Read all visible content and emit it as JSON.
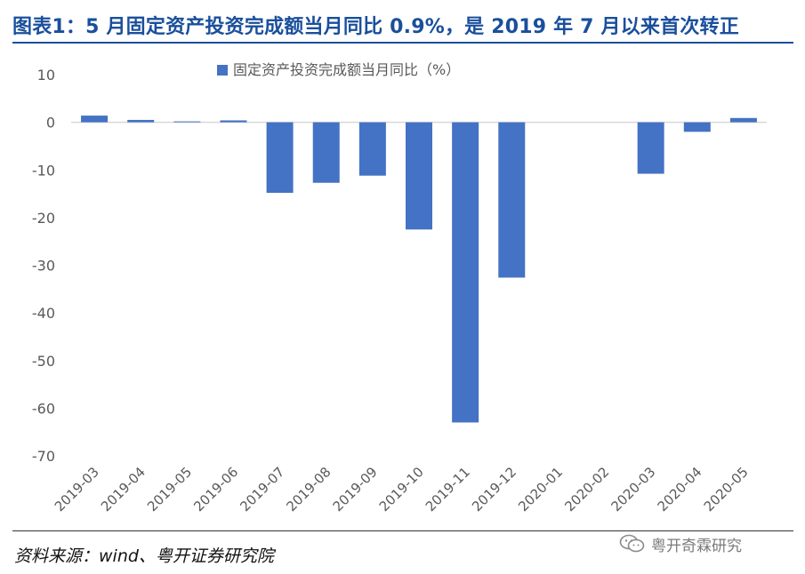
{
  "header": {
    "title": "图表1：5 月固定资产投资完成额当月同比 0.9%，是 2019 年 7 月以来首次转正"
  },
  "footer": {
    "source": "资料来源：wind、粤开证券研究院",
    "watermark_text": "粤开奇霖研究",
    "watermark_icon": "wechat-icon"
  },
  "chart_data": {
    "type": "bar",
    "title": "",
    "xlabel": "",
    "ylabel": "",
    "categories": [
      "2019-03",
      "2019-04",
      "2019-05",
      "2019-06",
      "2019-07",
      "2019-08",
      "2019-09",
      "2019-10",
      "2019-11",
      "2019-12",
      "2020-01",
      "2020-02",
      "2020-03",
      "2020-04",
      "2020-05"
    ],
    "series": [
      {
        "name": "固定资产投资完成额当月同比（%）",
        "values": [
          1.4,
          0.5,
          0.0,
          0.4,
          -14.8,
          -12.7,
          -11.2,
          -22.5,
          -63.0,
          -32.6,
          null,
          null,
          -10.8,
          -2.0,
          0.9
        ],
        "color": "#4472c4"
      }
    ],
    "ylim": [
      -70,
      10
    ],
    "yticks": [
      10,
      0,
      -10,
      -20,
      -30,
      -40,
      -50,
      -60,
      -70
    ],
    "grid": false,
    "legend": "top-center"
  }
}
